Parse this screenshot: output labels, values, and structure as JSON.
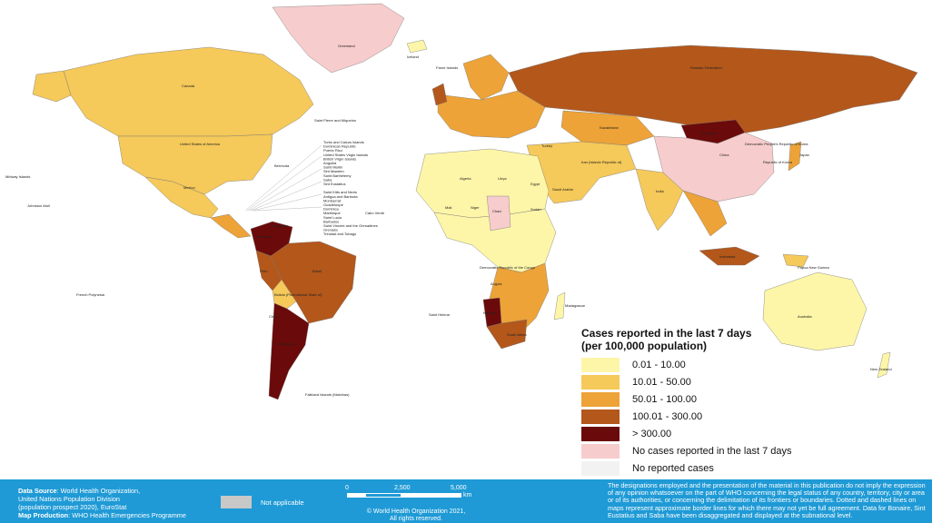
{
  "legend": {
    "title_line1": "Cases reported in the last 7 days",
    "title_line2": "(per 100,000 population)",
    "items": [
      {
        "label": "0.01 - 10.00",
        "color": "#fdf6a8"
      },
      {
        "label": "10.01 - 50.00",
        "color": "#f5c95a"
      },
      {
        "label": "50.01 - 100.00",
        "color": "#eda337"
      },
      {
        "label": "100.01 - 300.00",
        "color": "#b3571b"
      },
      {
        "label": "> 300.00",
        "color": "#6b0a0a"
      },
      {
        "label": "No cases reported in the last 7 days",
        "color": "#f7cccc"
      },
      {
        "label": "No reported cases",
        "color": "#f2f2f2"
      }
    ]
  },
  "map_labels": {
    "greenland": "Greenland",
    "canada": "Canada",
    "usa": "United States of America",
    "russia": "Russian Federation",
    "china": "China",
    "brazil": "Brazil",
    "australia": "Australia",
    "mexico": "Mexico",
    "kazakhstan": "Kazakhstan",
    "mongolia": "Mongolia",
    "india": "India",
    "algeria": "Algeria",
    "libya": "Libya",
    "egypt": "Egypt",
    "sudan": "Sudan",
    "chad": "Chad",
    "niger": "Niger",
    "mali": "Mali",
    "drc": "Democratic Republic of the Congo",
    "angola": "Angola",
    "namibia": "Namibia",
    "south_africa": "South Africa",
    "argentina": "Argentina",
    "peru": "Peru",
    "bolivia": "Bolivia (Plurinational State of)",
    "colombia": "Colombia",
    "venezuela": "Venezuela",
    "chile": "Chile",
    "saudi": "Saudi Arabia",
    "iran": "Iran (Islamic Republic of)",
    "turkey": "Turkey",
    "indonesia": "Indonesia",
    "png": "Papua New Guinea",
    "new_zealand": "New Zealand",
    "japan": "Japan",
    "korea": "Republic of Korea",
    "dprk": "Democratic People's Republic of Korea",
    "madagascar": "Madagascar",
    "falkland": "Falkland Islands (Malvinas)",
    "saint_pierre": "Saint Pierre and Miquelon",
    "bermuda": "Bermuda",
    "iceland": "Iceland",
    "faroe": "Faroe Islands",
    "hawaii_midway": "Midway Islands",
    "johnston": "Johnston Atoll",
    "french_polynesia": "French Polynesia",
    "cabo_verde": "Cabo Verde",
    "saint_helena": "Saint Helena",
    "caribbean_list": "Turks and Caicos Islands\nDominican Republic\nPuerto Rico\nUnited States Virgin Islands\nBritish Virgin Islands\nAnguilla\nSaint Martin\nSint Maarten\nSaint Barthélemy\nSaba\nSint Eustatius\n\nSaint Kitts and Nevis\nAntigua and Barbuda\nMontserrat\nGuadeloupe\nDominica\nMartinique\nSaint Lucia\nBarbados\nSaint Vincent and the Grenadines\nGrenada\nTrinidad and Tobago"
  },
  "footer": {
    "data_source_label": "Data Source",
    "data_source_text": ": World Health Organization,",
    "line2": "United Nations Population Division",
    "line3": "(population prospect 2020), EuroStat",
    "map_production_label": "Map Production",
    "map_production_text": ": WHO Health Emergencies Programme",
    "not_applicable": "Not applicable",
    "scale_0": "0",
    "scale_2500": "2,500",
    "scale_5000": "5,000",
    "scale_unit": "km",
    "copyright_line1": "© World Health Organization  2021,",
    "copyright_line2": "All rights reserved.",
    "disclaimer": "The designations employed and the presentation of the material in this publication do not imply the expression of any opinion whatsoever on the part of WHO concerning the legal status of any country, territory, city or area or of its authorities, or concerning the delimitation of its frontiers or boundaries. Dotted and dashed lines on maps represent approximate border lines for which there may not yet be full agreement. Data for Bonaire, Sint Eustatius and Saba have been disaggregated and displayed at the subnational level."
  }
}
